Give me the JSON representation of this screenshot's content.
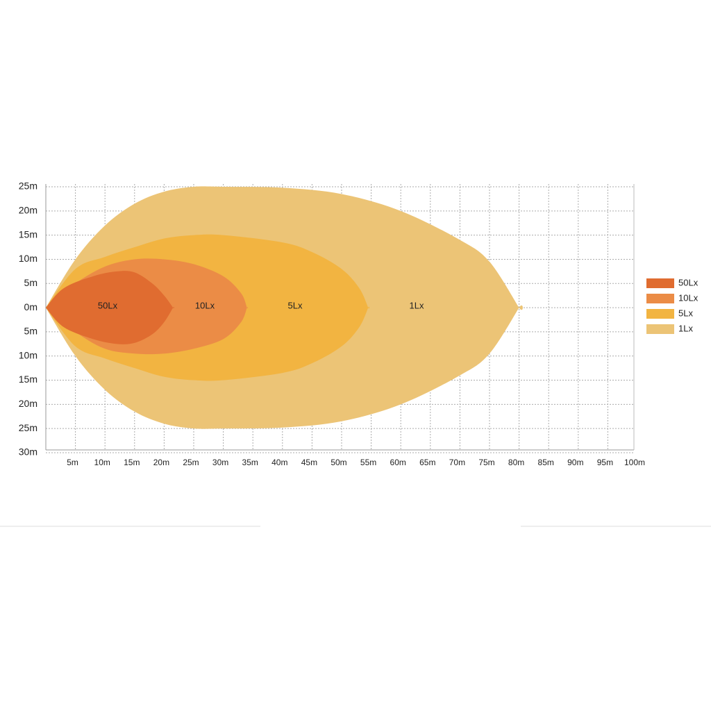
{
  "chart_data": {
    "type": "isolux",
    "xticks": [
      {
        "value": 5,
        "label": "5m"
      },
      {
        "value": 10,
        "label": "10m"
      },
      {
        "value": 15,
        "label": "15m"
      },
      {
        "value": 20,
        "label": "20m"
      },
      {
        "value": 25,
        "label": "25m"
      },
      {
        "value": 30,
        "label": "30m"
      },
      {
        "value": 35,
        "label": "35m"
      },
      {
        "value": 40,
        "label": "40m"
      },
      {
        "value": 45,
        "label": "45m"
      },
      {
        "value": 50,
        "label": "50m"
      },
      {
        "value": 55,
        "label": "55m"
      },
      {
        "value": 60,
        "label": "60m"
      },
      {
        "value": 65,
        "label": "65m"
      },
      {
        "value": 70,
        "label": "70m"
      },
      {
        "value": 75,
        "label": "75m"
      },
      {
        "value": 80,
        "label": "80m"
      },
      {
        "value": 85,
        "label": "85m"
      },
      {
        "value": 90,
        "label": "90m"
      },
      {
        "value": 95,
        "label": "95m"
      },
      {
        "value": 100,
        "label": "100m"
      }
    ],
    "yticks": [
      {
        "value": 25,
        "label": "25m"
      },
      {
        "value": 20,
        "label": "20m"
      },
      {
        "value": 15,
        "label": "15m"
      },
      {
        "value": 10,
        "label": "10m"
      },
      {
        "value": 5,
        "label": "5m"
      },
      {
        "value": 0,
        "label": "0m"
      },
      {
        "value": -5,
        "label": "5m"
      },
      {
        "value": -10,
        "label": "10m"
      },
      {
        "value": -15,
        "label": "15m"
      },
      {
        "value": -20,
        "label": "20m"
      },
      {
        "value": -25,
        "label": "25m"
      },
      {
        "value": -30,
        "label": "30m"
      }
    ],
    "xlim": [
      0,
      100
    ],
    "ylim": [
      -30,
      25
    ],
    "grid": true,
    "legend": "right",
    "series": [
      {
        "name": "1Lx",
        "color": "#ecc476",
        "x": [
          0,
          5,
          10,
          15,
          20,
          25,
          30,
          40,
          50,
          60,
          70,
          75,
          80
        ],
        "upper": [
          0,
          10,
          17,
          21.5,
          24,
          25,
          25,
          24.8,
          23.5,
          20,
          14,
          9.5,
          0
        ],
        "lower": [
          0,
          -10,
          -17,
          -21.5,
          -24,
          -25,
          -25,
          -24.8,
          -23.5,
          -20,
          -14,
          -9.5,
          0
        ]
      },
      {
        "name": "5Lx",
        "color": "#f2b441",
        "x": [
          0,
          5,
          10,
          15,
          20,
          25,
          30,
          40,
          45,
          50,
          53,
          54.5
        ],
        "upper": [
          0,
          8,
          10.5,
          12.5,
          14.3,
          15,
          15,
          13.5,
          11.5,
          8,
          4,
          0
        ],
        "lower": [
          0,
          -8,
          -10.5,
          -12.5,
          -14.3,
          -15,
          -15,
          -13.5,
          -11.5,
          -8,
          -4,
          0
        ]
      },
      {
        "name": "10Lx",
        "color": "#eb8c46",
        "x": [
          0,
          5,
          10,
          15,
          20,
          25,
          30,
          33,
          34
        ],
        "upper": [
          0,
          5,
          8.5,
          10,
          10,
          9,
          6.5,
          3,
          0
        ],
        "lower": [
          0,
          -5,
          -8.5,
          -9.5,
          -9.5,
          -8.5,
          -6.5,
          -3,
          0
        ]
      },
      {
        "name": "50Lx",
        "color": "#e06c30",
        "x": [
          0,
          3,
          8,
          12,
          15,
          18,
          20,
          21.5
        ],
        "upper": [
          0,
          4,
          6.5,
          7.5,
          7.3,
          5,
          2.5,
          0
        ],
        "lower": [
          0,
          -4,
          -6.5,
          -7.5,
          -7.3,
          -5.5,
          -3,
          0
        ]
      }
    ]
  }
}
